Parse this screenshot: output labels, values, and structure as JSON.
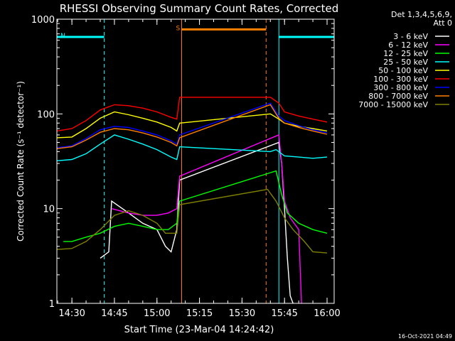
{
  "chart_data": {
    "type": "line",
    "title": "RHESSI Observing Summary Count Rates, Corrected",
    "xlabel": "Start Time (23-Mar-04 14:24:42)",
    "ylabel": "Corrected Count Rate (s⁻¹ detector⁻¹)",
    "yscale": "log",
    "ylim": [
      1,
      1000
    ],
    "xlim": [
      "14:24:42",
      "16:02:30"
    ],
    "x_ticks": [
      "14:30",
      "14:45",
      "15:00",
      "15:15",
      "15:30",
      "15:45",
      "16:00"
    ],
    "y_ticks": [
      "1",
      "10",
      "100",
      "1000"
    ],
    "legend_header": [
      "Det 1,3,4,5,6,9,",
      "Att 0"
    ],
    "legend_position": "top-right",
    "timestamp": "16-Oct-2021 04:49",
    "bars": [
      {
        "label": "N",
        "start": "14:24:42",
        "end": "14:41:24",
        "color": "#00ffff",
        "level": 650
      },
      {
        "label": "S",
        "start": "15:08:42",
        "end": "15:38:30",
        "color": "#ff8000",
        "level": 780
      },
      {
        "label": "",
        "start": "15:43:00",
        "end": "16:02:30",
        "color": "#00ffff",
        "level": 650
      }
    ],
    "vlines": [
      {
        "x": "14:24:42",
        "color": "#00ffff",
        "style": "solid"
      },
      {
        "x": "14:41:24",
        "color": "#00ffff",
        "style": "dashed"
      },
      {
        "x": "15:08:42",
        "color": "#ff8000",
        "style": "solid"
      },
      {
        "x": "15:38:30",
        "color": "#ff8000",
        "style": "dashed"
      },
      {
        "x": "15:43:00",
        "color": "#00ffff",
        "style": "solid"
      },
      {
        "x": "16:02:30",
        "color": "#00ffff",
        "style": "dashed"
      }
    ],
    "series": [
      {
        "name": "3 - 6 keV",
        "color": "#ffffff",
        "x": [
          "14:40:00",
          "14:43:00",
          "14:44:00",
          "14:50:00",
          "14:55:00",
          "15:00:00",
          "15:03:00",
          "15:05:00",
          "15:07:00",
          "15:08:00",
          "15:43:00",
          "15:44:00",
          "15:45:00",
          "15:46:00",
          "15:47:00",
          "15:48:00"
        ],
        "y": [
          3,
          3.5,
          12,
          9,
          7,
          6,
          4,
          3.5,
          6,
          20,
          50,
          30,
          10,
          3,
          1.2,
          1
        ]
      },
      {
        "name": "6 - 12 keV",
        "color": "#ff00ff",
        "x": [
          "14:44:00",
          "14:50:00",
          "14:55:00",
          "15:00:00",
          "15:04:00",
          "15:07:00",
          "15:08:00",
          "15:43:00",
          "15:44:00",
          "15:45:00",
          "15:47:00",
          "15:50:00",
          "15:51:00"
        ],
        "y": [
          10,
          9,
          8.5,
          8.5,
          9,
          10,
          22,
          60,
          30,
          12,
          8,
          6,
          1
        ]
      },
      {
        "name": "12 - 25 keV",
        "color": "#00ff00",
        "x": [
          "14:27:00",
          "14:30:00",
          "14:35:00",
          "14:40:00",
          "14:45:00",
          "14:50:00",
          "14:55:00",
          "15:00:00",
          "15:04:00",
          "15:07:00",
          "15:08:00",
          "15:42:00",
          "15:44:00",
          "15:46:00",
          "15:50:00",
          "15:55:00",
          "16:00:00"
        ],
        "y": [
          4.5,
          4.5,
          5,
          5.5,
          6.5,
          7,
          6.5,
          6,
          6,
          7,
          12,
          25,
          14,
          9,
          7,
          6,
          5.5
        ]
      },
      {
        "name": "25 - 50 keV",
        "color": "#00ffff",
        "x": [
          "14:24:42",
          "14:30:00",
          "14:35:00",
          "14:40:00",
          "14:45:00",
          "14:50:00",
          "14:55:00",
          "15:00:00",
          "15:05:00",
          "15:07:00",
          "15:08:00",
          "15:40:00",
          "15:42:00",
          "15:45:00",
          "15:50:00",
          "15:55:00",
          "16:00:00"
        ],
        "y": [
          32,
          33,
          38,
          48,
          60,
          54,
          48,
          42,
          35,
          33,
          45,
          40,
          42,
          36,
          35,
          34,
          35
        ]
      },
      {
        "name": "50 - 100 keV",
        "color": "#ffff00",
        "x": [
          "14:24:42",
          "14:30:00",
          "14:35:00",
          "14:40:00",
          "14:45:00",
          "14:50:00",
          "14:55:00",
          "15:00:00",
          "15:05:00",
          "15:07:00",
          "15:08:00",
          "15:40:00",
          "15:43:00",
          "15:45:00",
          "15:50:00",
          "15:55:00",
          "16:00:00"
        ],
        "y": [
          56,
          57,
          70,
          90,
          105,
          98,
          90,
          82,
          72,
          66,
          80,
          100,
          88,
          80,
          74,
          70,
          66
        ]
      },
      {
        "name": "100 - 300 keV",
        "color": "#ff0000",
        "x": [
          "14:24:42",
          "14:30:00",
          "14:35:00",
          "14:40:00",
          "14:45:00",
          "14:50:00",
          "14:55:00",
          "15:00:00",
          "15:05:00",
          "15:07:00",
          "15:08:00",
          "15:40:00",
          "15:43:00",
          "15:45:00",
          "15:50:00",
          "15:55:00",
          "16:00:00"
        ],
        "y": [
          66,
          70,
          85,
          110,
          125,
          122,
          115,
          105,
          92,
          88,
          150,
          150,
          130,
          105,
          95,
          88,
          82
        ]
      },
      {
        "name": "300 - 800 keV",
        "color": "#0000ff",
        "x": [
          "14:24:42",
          "14:30:00",
          "14:35:00",
          "14:40:00",
          "14:45:00",
          "14:50:00",
          "14:55:00",
          "15:00:00",
          "15:05:00",
          "15:07:00",
          "15:08:00",
          "15:40:00",
          "15:43:00",
          "15:45:00",
          "15:50:00",
          "15:55:00",
          "16:00:00"
        ],
        "y": [
          44,
          46,
          55,
          68,
          74,
          72,
          66,
          60,
          52,
          48,
          60,
          130,
          95,
          85,
          75,
          68,
          63
        ]
      },
      {
        "name": "800 - 7000 keV",
        "color": "#ff8000",
        "x": [
          "14:24:42",
          "14:30:00",
          "14:35:00",
          "14:40:00",
          "14:45:00",
          "14:50:00",
          "14:55:00",
          "15:00:00",
          "15:05:00",
          "15:07:00",
          "15:08:00",
          "15:40:00",
          "15:43:00",
          "15:45:00",
          "15:50:00",
          "15:55:00",
          "16:00:00"
        ],
        "y": [
          43,
          45,
          53,
          64,
          70,
          68,
          63,
          57,
          50,
          46,
          56,
          125,
          90,
          80,
          72,
          66,
          61
        ]
      },
      {
        "name": "7000 - 15000 keV",
        "color": "#808000",
        "x": [
          "14:24:42",
          "14:30:00",
          "14:35:00",
          "14:40:00",
          "14:45:00",
          "14:50:00",
          "14:55:00",
          "15:00:00",
          "15:03:00",
          "15:07:00",
          "15:08:00",
          "15:39:00",
          "15:42:00",
          "15:45:00",
          "15:48:00",
          "15:52:00",
          "15:55:00",
          "16:00:00"
        ],
        "y": [
          3.7,
          3.8,
          4.5,
          6,
          8.5,
          9.5,
          8.5,
          7,
          5.5,
          5.5,
          11,
          16,
          12,
          8,
          6,
          4.5,
          3.5,
          3.4
        ]
      }
    ]
  }
}
